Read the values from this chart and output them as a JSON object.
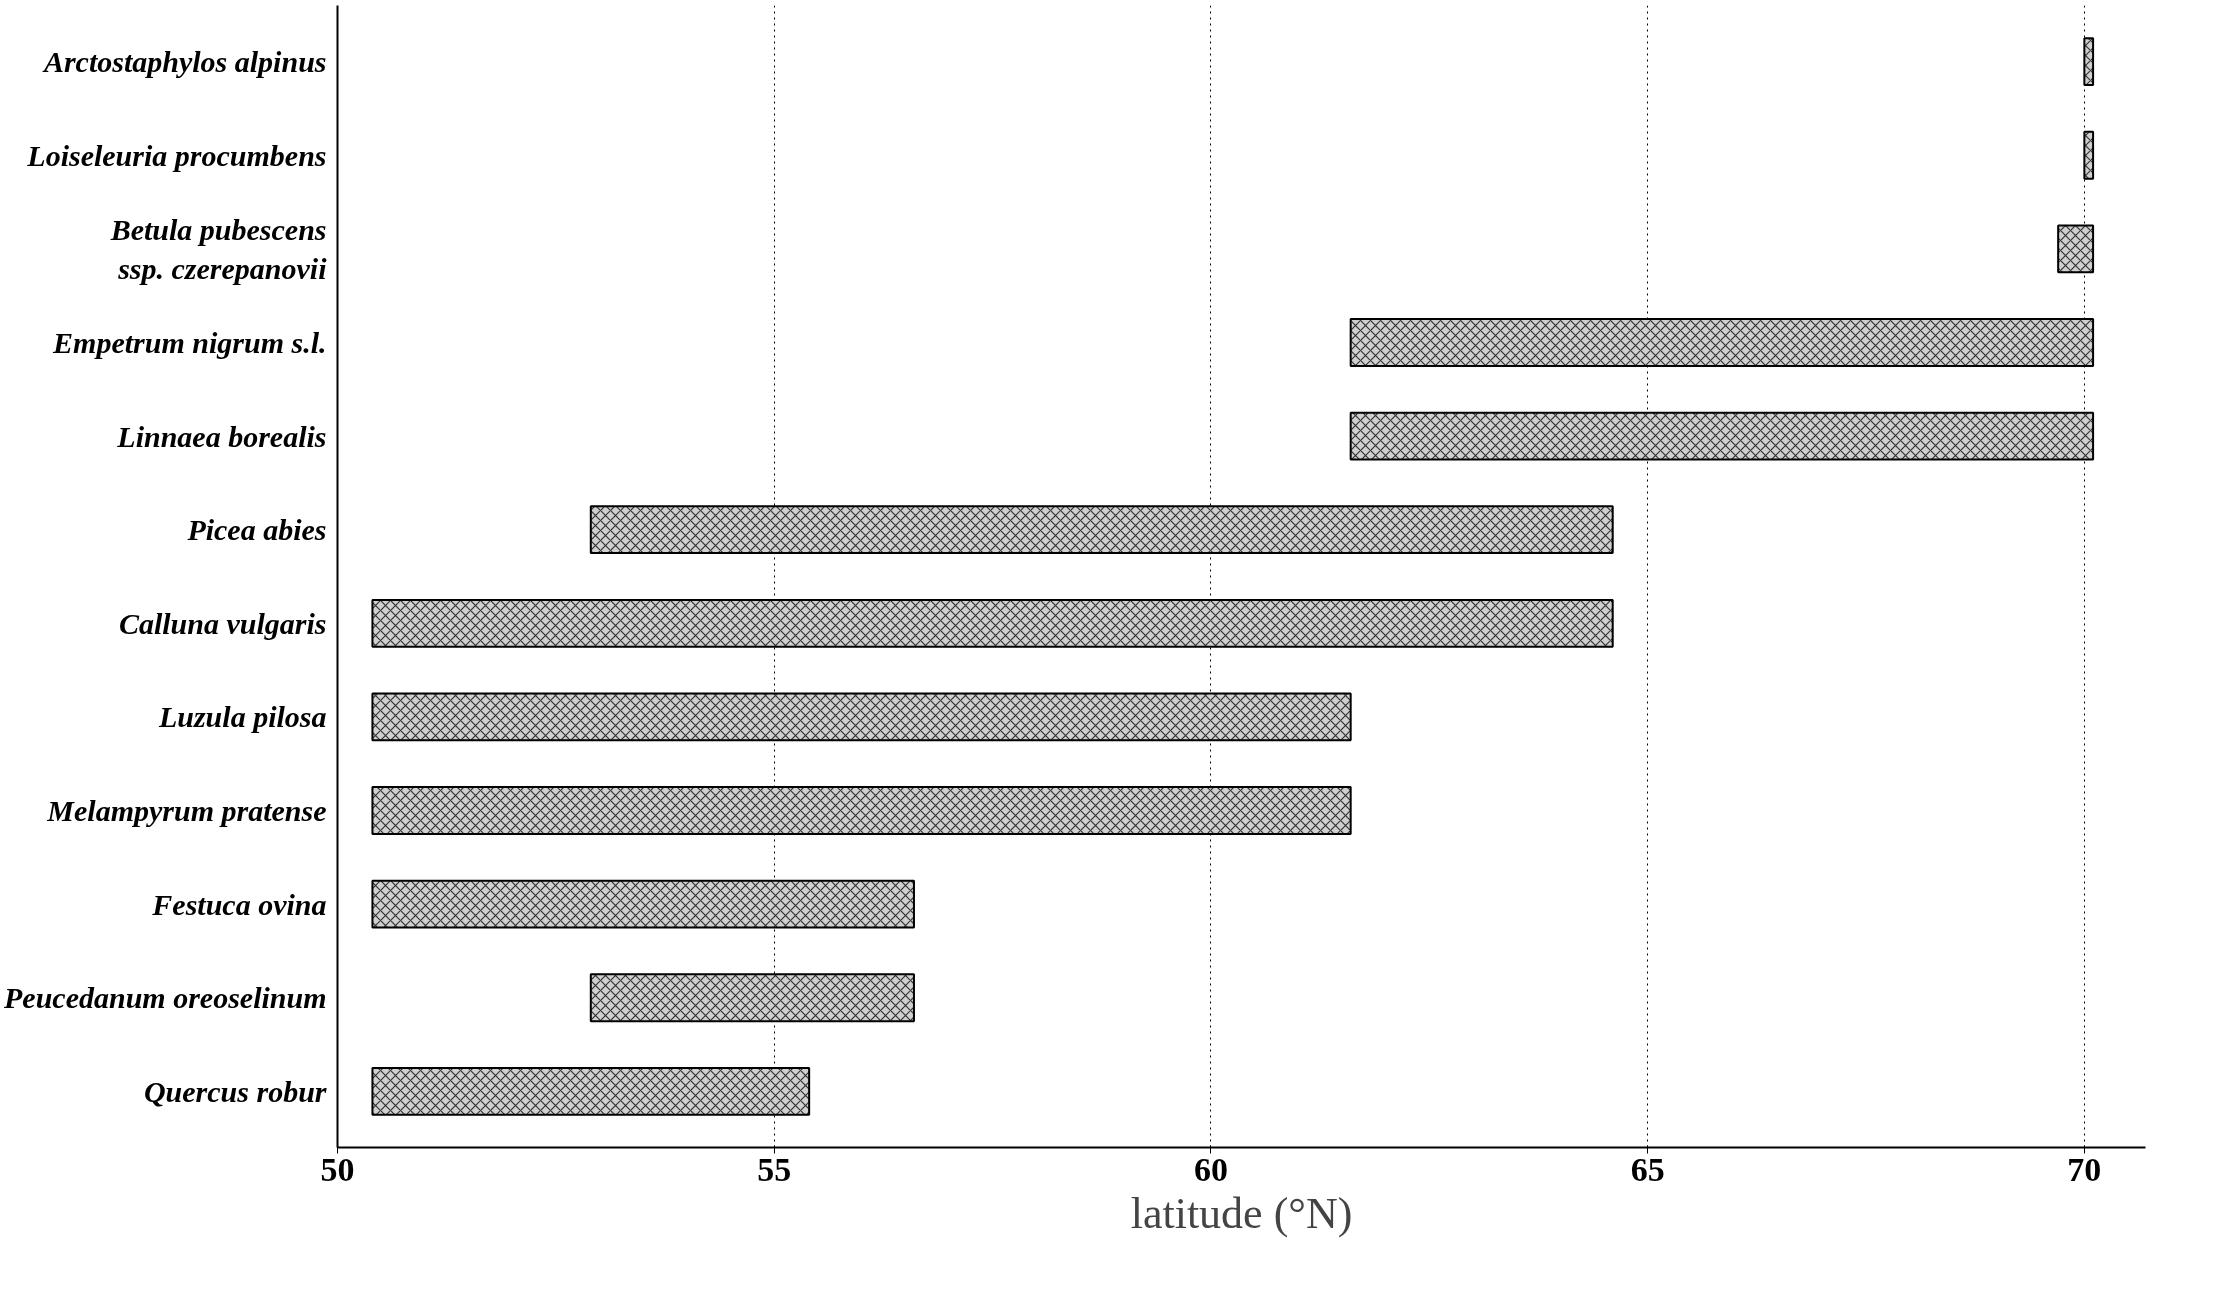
{
  "chart_data": {
    "type": "bar",
    "orientation": "horizontal",
    "xlabel": "latitude (°N)",
    "categories": [
      "Arctostaphylos alpinus",
      "Loiseleuria procumbens",
      "Betula pubescens\nssp. czerepanovii",
      "Empetrum nigrum s.l.",
      "Linnaea borealis",
      "Picea abies",
      "Calluna vulgaris",
      "Luzula pilosa",
      "Melampyrum pratense",
      "Festuca ovina",
      "Peucedanum oreoselinum",
      "Quercus robur"
    ],
    "base": [
      70.0,
      70.0,
      69.7,
      61.6,
      61.6,
      52.9,
      50.4,
      50.4,
      50.4,
      50.4,
      52.9,
      50.4
    ],
    "values": [
      0.1,
      0.1,
      0.4,
      8.5,
      8.5,
      11.7,
      14.2,
      11.2,
      11.2,
      6.2,
      3.7,
      5.0
    ],
    "color": "#d0d0d0",
    "xlim": [
      50,
      70.7
    ],
    "xticks": [
      50,
      55,
      60,
      65,
      70
    ],
    "grid": "x",
    "line_style": "dotted"
  }
}
